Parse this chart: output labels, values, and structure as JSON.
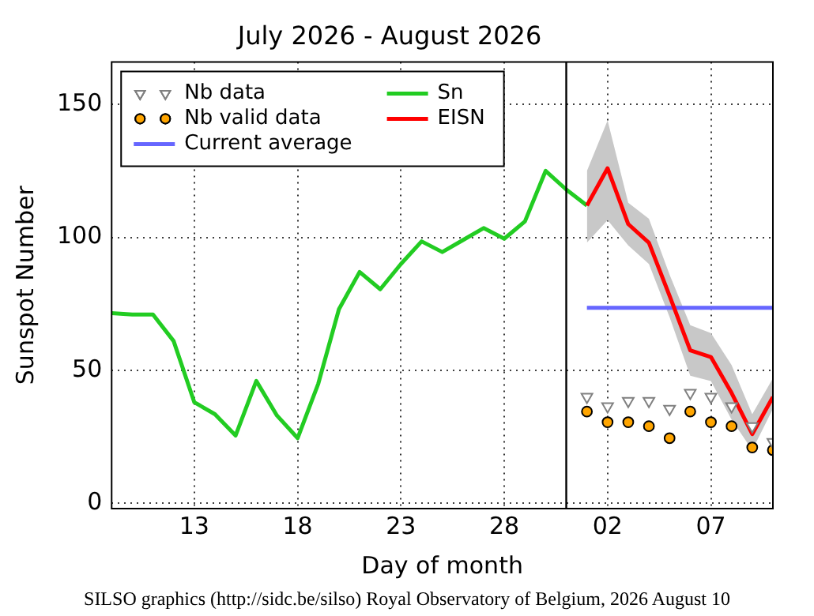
{
  "chart_data": {
    "type": "line",
    "title": "July 2026 - August 2026",
    "xlabel": "Day of month",
    "ylabel": "Sunspot Number",
    "xlim": [
      "2026-07-09",
      "2026-08-10"
    ],
    "xticks": [
      {
        "value": "2026-07-13",
        "label": "13"
      },
      {
        "value": "2026-07-18",
        "label": "18"
      },
      {
        "value": "2026-07-23",
        "label": "23"
      },
      {
        "value": "2026-07-28",
        "label": "28"
      },
      {
        "value": "2026-08-02",
        "label": "02"
      },
      {
        "value": "2026-08-07",
        "label": "07"
      }
    ],
    "ylim": [
      -2,
      166
    ],
    "yticks": [
      0,
      50,
      100,
      150
    ],
    "grid": true,
    "legend": "top left",
    "ref_lines": [
      {
        "axis": "x",
        "value": "2026-07-31",
        "color": "#000000"
      }
    ],
    "annotations": [
      "SILSO graphics (http://sidc.be/silso) Royal Observatory of Belgium, 2026 August 10"
    ],
    "series": [
      {
        "name": "Nb data",
        "type": "scatter",
        "marker": "triangle",
        "color": "#808080",
        "x": [
          "2026-08-01",
          "2026-08-02",
          "2026-08-03",
          "2026-08-04",
          "2026-08-05",
          "2026-08-06",
          "2026-08-07",
          "2026-08-08",
          "2026-08-09",
          "2026-08-10"
        ],
        "values": [
          40,
          36.5,
          38.5,
          38.5,
          35.5,
          41.5,
          40,
          36.5,
          29,
          23
        ]
      },
      {
        "name": "Nb valid data",
        "type": "scatter",
        "marker": "circle",
        "color": "#ffa500",
        "x": [
          "2026-08-01",
          "2026-08-02",
          "2026-08-03",
          "2026-08-04",
          "2026-08-05",
          "2026-08-06",
          "2026-08-07",
          "2026-08-08",
          "2026-08-09",
          "2026-08-10"
        ],
        "values": [
          34.5,
          30.5,
          30.5,
          29,
          24.5,
          34.5,
          30.5,
          29,
          21,
          20
        ]
      },
      {
        "name": "Current average",
        "type": "line",
        "marker": "none",
        "color": "#6666ff",
        "x": [
          "2026-08-01",
          "2026-08-10"
        ],
        "values": [
          73.5,
          73.5
        ]
      },
      {
        "name": "Sn",
        "type": "line",
        "marker": "none",
        "color": "#22cc22",
        "x": [
          "2026-07-09",
          "2026-07-10",
          "2026-07-11",
          "2026-07-12",
          "2026-07-13",
          "2026-07-14",
          "2026-07-15",
          "2026-07-16",
          "2026-07-17",
          "2026-07-18",
          "2026-07-19",
          "2026-07-20",
          "2026-07-21",
          "2026-07-22",
          "2026-07-23",
          "2026-07-24",
          "2026-07-25",
          "2026-07-26",
          "2026-07-27",
          "2026-07-28",
          "2026-07-29",
          "2026-07-30",
          "2026-07-31",
          "2026-08-01"
        ],
        "values": [
          71.5,
          71,
          71,
          61,
          38,
          33.5,
          25.5,
          46,
          33,
          24.5,
          45,
          73,
          87,
          80.5,
          90,
          98.5,
          94.5,
          99,
          103.5,
          99.5,
          106,
          125,
          118,
          112
        ]
      },
      {
        "name": "EISN",
        "type": "line",
        "marker": "none",
        "color": "#ff0000",
        "x": [
          "2026-08-01",
          "2026-08-02",
          "2026-08-03",
          "2026-08-04",
          "2026-08-05",
          "2026-08-06",
          "2026-08-07",
          "2026-08-08",
          "2026-08-09",
          "2026-08-10"
        ],
        "values": [
          112,
          126,
          105,
          98,
          78,
          57.5,
          55,
          41.5,
          26,
          40
        ],
        "lower": [
          98,
          106.5,
          97,
          90,
          70,
          48,
          46,
          31.5,
          20,
          35.5
        ],
        "upper": [
          125,
          144,
          113,
          107,
          86,
          67,
          64,
          52,
          33.5,
          47
        ]
      }
    ]
  }
}
